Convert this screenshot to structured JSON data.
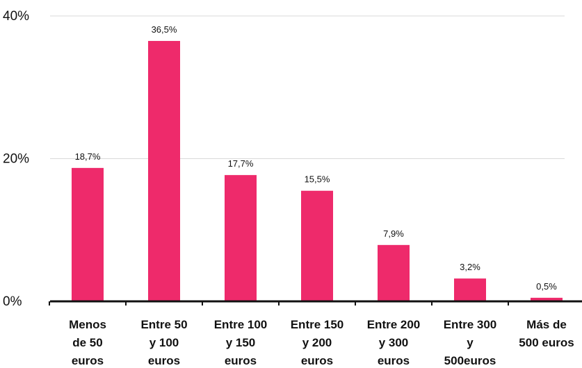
{
  "colors": {
    "bar": "#ee2a6b",
    "grid": "#d9d9d9",
    "axis": "#111111"
  },
  "chart_data": {
    "type": "bar",
    "categories": [
      [
        "Menos",
        "de 50",
        "euros"
      ],
      [
        "Entre 50",
        "y 100",
        "euros"
      ],
      [
        "Entre 100",
        "y 150",
        "euros"
      ],
      [
        "Entre 150",
        "y 200",
        "euros"
      ],
      [
        "Entre 200",
        "y 300",
        "euros"
      ],
      [
        "Entre 300",
        "y",
        "500euros"
      ],
      [
        "Más de",
        "500 euros"
      ]
    ],
    "values": [
      18.7,
      36.5,
      17.7,
      15.5,
      7.9,
      3.2,
      0.5
    ],
    "data_labels": [
      "18,7%",
      "36,5%",
      "17,7%",
      "15,5%",
      "7,9%",
      "3,2%",
      "0,5%"
    ],
    "y_ticks": [
      0,
      20,
      40
    ],
    "y_tick_labels": [
      "0%",
      "20%",
      "40%"
    ],
    "ylim": [
      0,
      40
    ],
    "grid": true,
    "title": "",
    "xlabel": "",
    "ylabel": ""
  }
}
